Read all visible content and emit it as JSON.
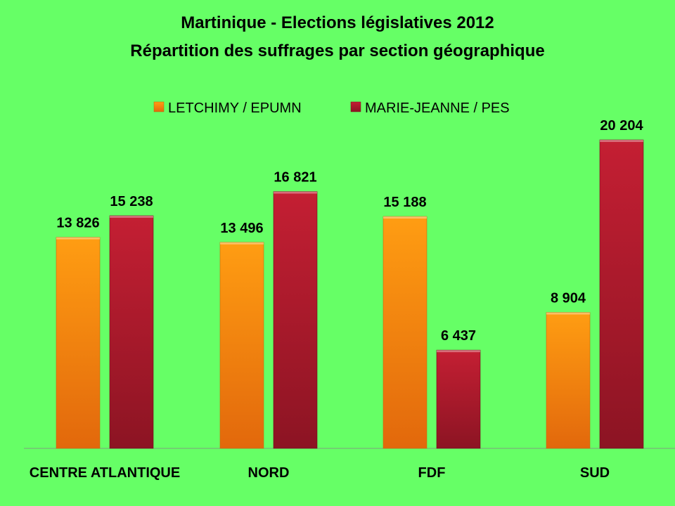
{
  "chart_data": {
    "type": "bar",
    "title": "Martinique - Elections législatives 2012",
    "subtitle": "Répartition des suffrages par section géographique",
    "categories": [
      "CENTRE ATLANTIQUE",
      "NORD",
      "FDF",
      "SUD"
    ],
    "series": [
      {
        "name": "LETCHIMY / EPUMN",
        "values": [
          13826,
          13496,
          15188,
          8904
        ],
        "labels": [
          "13 826",
          "13 496",
          "15 188",
          "8 904"
        ],
        "color": "#f59a18"
      },
      {
        "name": "MARIE-JEANNE / PES",
        "values": [
          15238,
          16821,
          6437,
          20204
        ],
        "labels": [
          "15 238",
          "16 821",
          "6 437",
          "20 204"
        ],
        "color": "#b0202c"
      }
    ],
    "ylim": [
      0,
      22000
    ],
    "grid": false,
    "legend_position": "top-center",
    "background": "#66ff66",
    "xlabel": "",
    "ylabel": ""
  }
}
